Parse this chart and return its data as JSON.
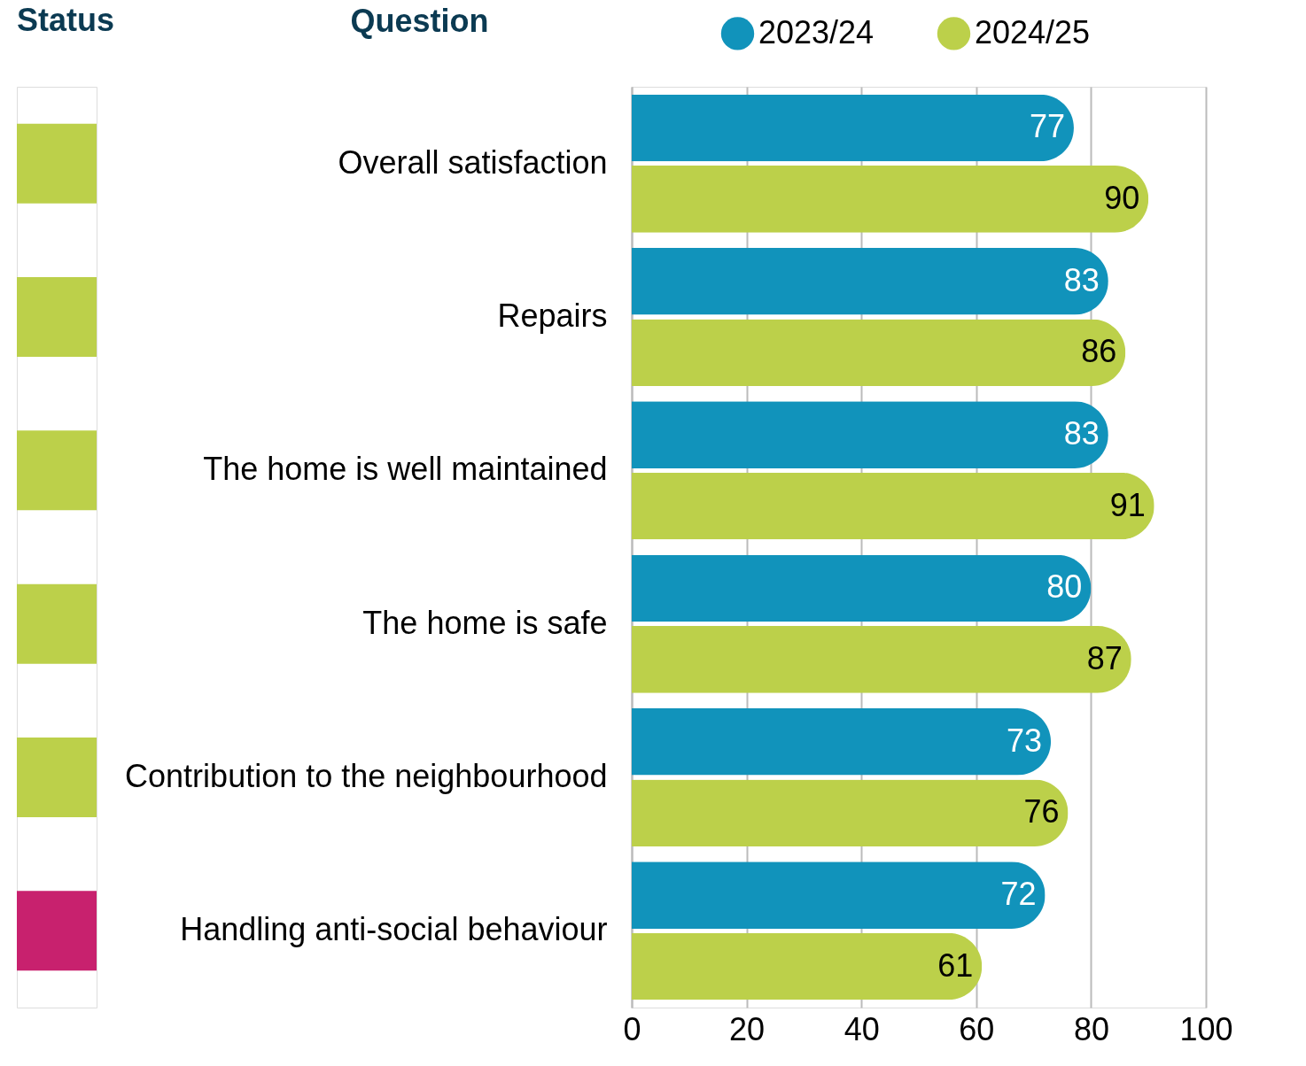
{
  "chart_data": {
    "type": "bar",
    "orientation": "horizontal",
    "ylabel": "Question",
    "annotations": [
      "Status"
    ],
    "categories": [
      "Overall satisfaction",
      "Repairs",
      "The home is well maintained",
      "The home is safe",
      "Contribution to the neighbourhood",
      "Handling anti-social behaviour"
    ],
    "series": [
      {
        "name": "2023/24",
        "color": "#1193bb",
        "values": [
          77,
          83,
          83,
          80,
          73,
          72
        ]
      },
      {
        "name": "2024/25",
        "color": "#bcd04a",
        "values": [
          90,
          86,
          91,
          87,
          76,
          61
        ]
      }
    ],
    "xlim": [
      0,
      100
    ],
    "xticks": [
      0,
      20,
      40,
      60,
      80,
      100
    ],
    "grid": "x",
    "legend": "top",
    "data_labels": true
  }
}
